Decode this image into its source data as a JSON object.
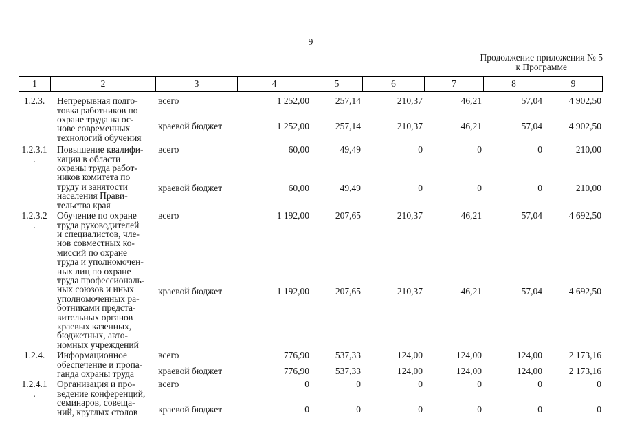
{
  "page": {
    "number": "9",
    "continuation": "Продолжение приложения № 5\nк Программе"
  },
  "table": {
    "column_headers": [
      "1",
      "2",
      "3",
      "4",
      "5",
      "6",
      "7",
      "8",
      "9"
    ],
    "rows": [
      {
        "num": "1.2.3.",
        "name": "Непрерывная подго-\nтовка работников по\nохране труда на ос-\nнове современных\nтехнологий обучения",
        "sources": [
          {
            "label": "всего",
            "values": [
              "1 252,00",
              "257,14",
              "210,37",
              "46,21",
              "57,04",
              "4 902,50"
            ]
          },
          {
            "label": "краевой бюджет",
            "values": [
              "1 252,00",
              "257,14",
              "210,37",
              "46,21",
              "57,04",
              "4 902,50"
            ]
          }
        ]
      },
      {
        "num": "1.2.3.1\n.",
        "name": "Повышение квалифи-\nкации в области\nохраны труда работ-\nников комитета по\nтруду и занятости\nнаселения Прави-\nтельства края",
        "sources": [
          {
            "label": "всего",
            "values": [
              "60,00",
              "49,49",
              "0",
              "0",
              "0",
              "210,00"
            ]
          },
          {
            "label": "краевой бюджет",
            "values": [
              "60,00",
              "49,49",
              "0",
              "0",
              "0",
              "210,00"
            ]
          }
        ]
      },
      {
        "num": "1.2.3.2\n.",
        "name": "Обучение по охране\nтруда руководителей\nи специалистов, чле-\nнов совместных ко-\nмиссий по охране\nтруда и уполномочен-\nных лиц по охране\nтруда профессиональ-\nных союзов и иных\nуполномоченных ра-\nботниками предста-\nвительных органов\nкраевых казенных,\nбюджетных, авто-\nномных учреждений",
        "sources": [
          {
            "label": "всего",
            "values": [
              "1 192,00",
              "207,65",
              "210,37",
              "46,21",
              "57,04",
              "4 692,50"
            ]
          },
          {
            "label": "краевой бюджет",
            "values": [
              "1 192,00",
              "207,65",
              "210,37",
              "46,21",
              "57,04",
              "4 692,50"
            ]
          }
        ]
      },
      {
        "num": "1.2.4.",
        "name": "Информационное\nобеспечение и пропа-\nганда охраны труда",
        "sources": [
          {
            "label": "всего",
            "values": [
              "776,90",
              "537,33",
              "124,00",
              "124,00",
              "124,00",
              "2 173,16"
            ]
          },
          {
            "label": "краевой бюджет",
            "values": [
              "776,90",
              "537,33",
              "124,00",
              "124,00",
              "124,00",
              "2 173,16"
            ]
          }
        ]
      },
      {
        "num": "1.2.4.1\n.",
        "name": "Организация и про-\nведение конференций,\nсеминаров, совеща-\nний, круглых столов",
        "sources": [
          {
            "label": "всего",
            "values": [
              "0",
              "0",
              "0",
              "0",
              "0",
              "0"
            ]
          },
          {
            "label": "краевой бюджет",
            "values": [
              "0",
              "0",
              "0",
              "0",
              "0",
              "0"
            ]
          }
        ]
      }
    ]
  }
}
